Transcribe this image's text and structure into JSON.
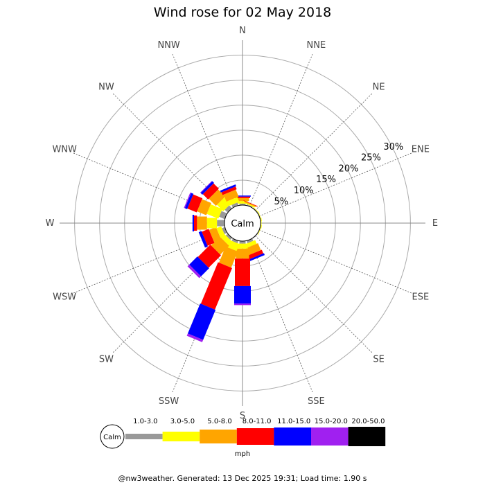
{
  "chart_data": {
    "type": "windrose",
    "title": "Wind rose for 02 May 2018",
    "directions": [
      "N",
      "NNE",
      "NE",
      "ENE",
      "E",
      "ESE",
      "SE",
      "SSE",
      "S",
      "SSW",
      "SW",
      "WSW",
      "W",
      "WNW",
      "NW",
      "NNW"
    ],
    "radial_ticks": [
      5,
      10,
      15,
      20,
      25,
      30
    ],
    "radial_tick_labels": [
      "5%",
      "10%",
      "15%",
      "20%",
      "25%",
      "30%"
    ],
    "rmax_percent": 33,
    "calm_label": "Calm",
    "unit": "mph",
    "bins": [
      {
        "label": "1.0-3.0",
        "color": "#999999"
      },
      {
        "label": "3.0-5.0",
        "color": "#ffff00"
      },
      {
        "label": "5.0-8.0",
        "color": "#ffa500"
      },
      {
        "label": "8.0-11.0",
        "color": "#ff0000"
      },
      {
        "label": "11.0-15.0",
        "color": "#0000ff"
      },
      {
        "label": "15.0-20.0",
        "color": "#a020f0"
      },
      {
        "label": "20.0-50.0",
        "color": "#000000"
      }
    ],
    "series": [
      {
        "direction": "N",
        "values": [
          0.3,
          0.5,
          0.6,
          0.3,
          0.2,
          0,
          0
        ]
      },
      {
        "direction": "NNE",
        "values": [
          0.2,
          0.2,
          0.2,
          0.1,
          0,
          0,
          0
        ]
      },
      {
        "direction": "NE",
        "values": [
          0.1,
          0.1,
          0,
          0,
          0,
          0,
          0
        ]
      },
      {
        "direction": "ENE",
        "values": [
          0.1,
          0.1,
          0,
          0,
          0,
          0,
          0
        ]
      },
      {
        "direction": "E",
        "values": [
          0.1,
          0.1,
          0,
          0,
          0,
          0,
          0
        ]
      },
      {
        "direction": "ESE",
        "values": [
          0.1,
          0.1,
          0,
          0,
          0,
          0,
          0
        ]
      },
      {
        "direction": "SE",
        "values": [
          0.1,
          0,
          0,
          0,
          0,
          0,
          0
        ]
      },
      {
        "direction": "SSE",
        "values": [
          0.5,
          0.8,
          1.5,
          0.8,
          0.4,
          0,
          0
        ]
      },
      {
        "direction": "S",
        "values": [
          0.5,
          1.0,
          2.0,
          5.5,
          3.5,
          0.3,
          0
        ]
      },
      {
        "direction": "SSW",
        "values": [
          0.5,
          1.5,
          3.5,
          9.0,
          6.5,
          0.5,
          0
        ]
      },
      {
        "direction": "SW",
        "values": [
          0.5,
          1.0,
          2.5,
          3.5,
          2.3,
          0.5,
          0
        ]
      },
      {
        "direction": "WSW",
        "values": [
          0.6,
          1.0,
          1.5,
          1.5,
          0.6,
          0,
          0
        ]
      },
      {
        "direction": "W",
        "values": [
          1.5,
          2.0,
          2.0,
          0.6,
          0.3,
          0,
          0
        ]
      },
      {
        "direction": "WNW",
        "values": [
          1.2,
          2.5,
          2.0,
          2.0,
          0.5,
          0.2,
          0
        ]
      },
      {
        "direction": "NW",
        "values": [
          0.8,
          1.8,
          2.0,
          1.5,
          0.5,
          0.1,
          0
        ]
      },
      {
        "direction": "NNW",
        "values": [
          0.6,
          1.0,
          1.5,
          0.6,
          0.4,
          0,
          0
        ]
      }
    ]
  },
  "footer": "@nw3weather. Generated: 13 Dec 2025 19:31; Load time: 1.90 s"
}
